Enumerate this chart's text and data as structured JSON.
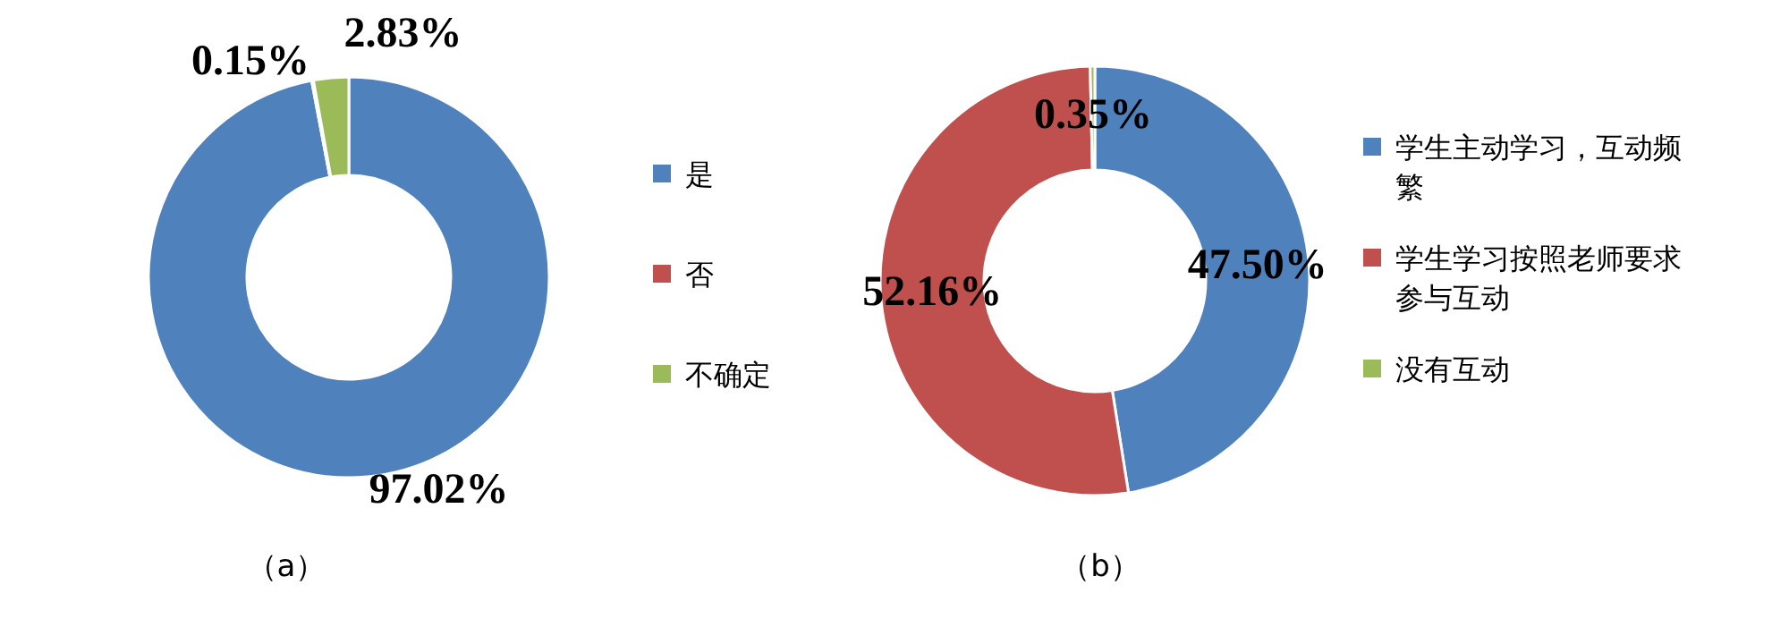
{
  "chart_data": [
    {
      "type": "donut",
      "categories": [
        "是",
        "否",
        "不确定"
      ],
      "values": [
        97.02,
        0.15,
        2.83
      ],
      "colors": [
        "#4f81bd",
        "#c0504d",
        "#9bbb59"
      ],
      "value_labels": [
        "97.02%",
        "0.15%",
        "2.83%"
      ],
      "legend": "right",
      "annotations": [
        "（a）"
      ]
    },
    {
      "type": "donut",
      "categories": [
        "学生主动学习，互动频繁",
        "学生学习按照老师要求参与互动",
        "没有互动"
      ],
      "values": [
        47.5,
        52.16,
        0.35
      ],
      "colors": [
        "#4f81bd",
        "#c0504d",
        "#9bbb59"
      ],
      "value_labels": [
        "47.50%",
        "52.16%",
        "0.35%"
      ],
      "legend": "right",
      "annotations": [
        "（b）"
      ]
    }
  ]
}
